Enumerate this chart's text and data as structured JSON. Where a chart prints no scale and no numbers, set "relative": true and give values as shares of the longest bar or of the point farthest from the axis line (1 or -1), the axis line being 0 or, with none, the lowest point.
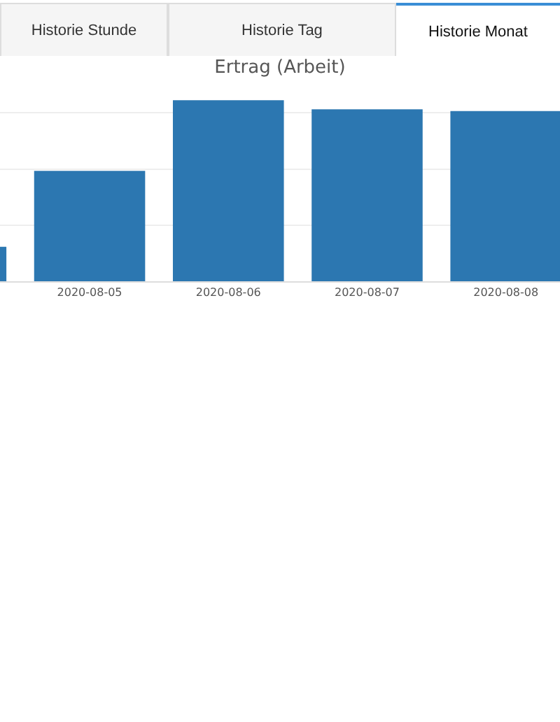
{
  "chart_data": {
    "type": "bar",
    "title": "Ertrag (Arbeit)",
    "relative": true,
    "categories": [
      null,
      "2020-08-05",
      "2020-08-06",
      "2020-08-07",
      "2020-08-08"
    ],
    "values": [
      0.19,
      0.61,
      1,
      0.95,
      0.94
    ],
    "color": "#2c77b1",
    "grid": "y",
    "annotations": [
      "Historie Stunde",
      "Historie Tag",
      "Historie Monat"
    ]
  }
}
